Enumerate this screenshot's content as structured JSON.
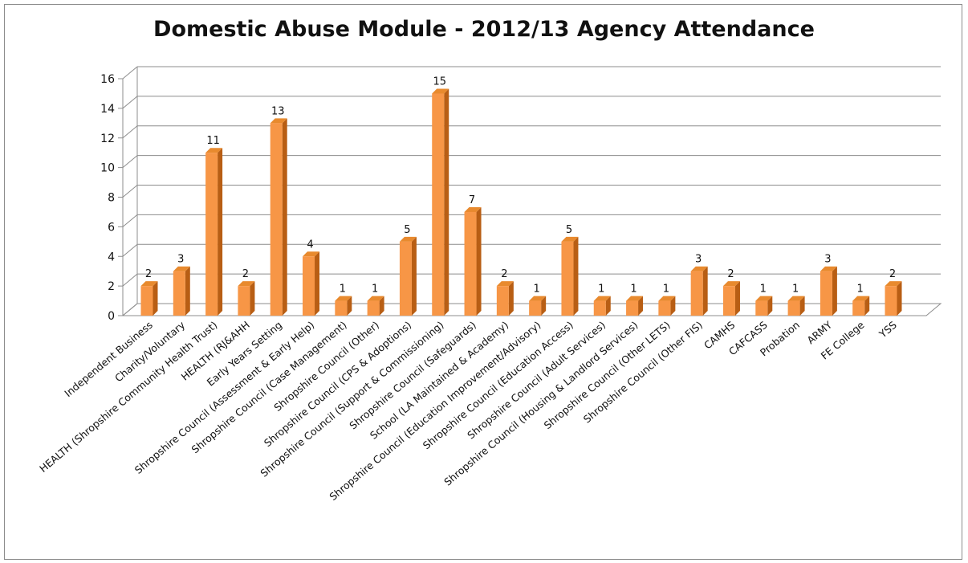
{
  "chart_data": {
    "type": "bar",
    "title": "Domestic Abuse Module - 2012/13 Agency Attendance",
    "xlabel": "",
    "ylabel": "",
    "ylim": [
      0,
      16
    ],
    "yticks": [
      0,
      2,
      4,
      6,
      8,
      10,
      12,
      14,
      16
    ],
    "grid": true,
    "legend": "none",
    "style": "3d-column",
    "categories": [
      "Independent Business",
      "Charity/Voluntary",
      "HEALTH (Shropshire Community Health Trust)",
      "HEALTH (RJ&AHH",
      "Early Years Setting",
      "Shropshire Council (Assessment & Early Help)",
      "Shropshire Council (Case Management)",
      "Shropshire Council (Other)",
      "Shropshire Council (CPS & Adoptions)",
      "Shropshire Council (Support & Commissioning)",
      "Shropshire Council (Safeguards)",
      "School (LA Maintained & Academy)",
      "Shropshire Council (Education Improvement/Advisory)",
      "Shropshire Council (Education Access)",
      "Shropshire Council (Adult Services)",
      "Shropshire Council (Housing & Landlord Services)",
      "Shropshire Council (Other LETS)",
      "Shropshire Council (Other FIS)",
      "CAMHS",
      "CAFCASS",
      "Probation",
      "ARMY",
      "FE College",
      "YSS"
    ],
    "series": [
      {
        "values": [
          2,
          3,
          11,
          2,
          13,
          4,
          1,
          1,
          5,
          15,
          7,
          2,
          1,
          5,
          1,
          1,
          1,
          3,
          2,
          1,
          1,
          3,
          1,
          2
        ],
        "color": "#f79646"
      }
    ]
  }
}
